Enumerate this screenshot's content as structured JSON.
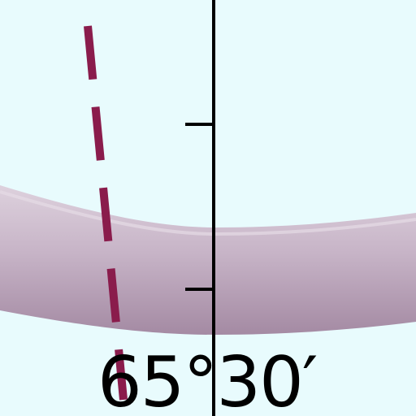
{
  "colors": {
    "background": "#e8fbfd",
    "band_light": "#d7c9d6",
    "band_mid": "#c3afc4",
    "band_dark": "#a58ba4",
    "dashed_line": "#8a1c4c",
    "axis": "#000000"
  },
  "label": {
    "latitude": "65°30′"
  }
}
